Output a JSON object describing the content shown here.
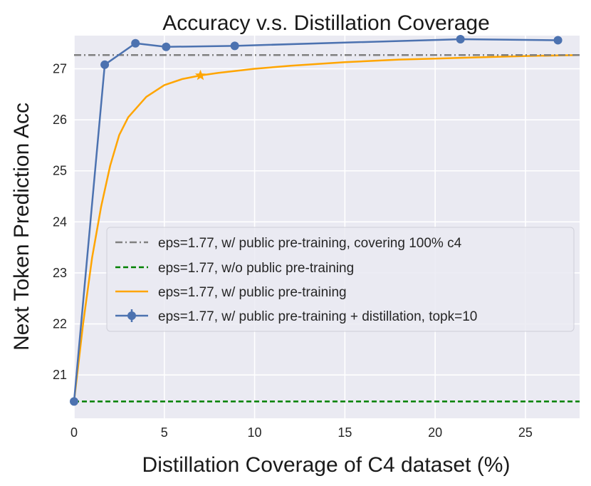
{
  "chart_data": {
    "type": "line",
    "title": "Accuracy v.s. Distillation Coverage",
    "xlabel": "Distillation Coverage of C4 dataset (%)",
    "ylabel": "Next Token Prediction Acc",
    "xlim": [
      0,
      28
    ],
    "ylim": [
      20.15,
      27.65
    ],
    "xticks": [
      0,
      5,
      10,
      15,
      20,
      25
    ],
    "yticks": [
      21,
      22,
      23,
      24,
      25,
      26,
      27
    ],
    "grid": true,
    "legend_position": "center-right",
    "series": [
      {
        "name": "eps=1.77, w/ public pre-training, covering 100% c4",
        "style": "dashdot",
        "color": "#808080",
        "x": [
          0,
          28
        ],
        "y": [
          27.27,
          27.27
        ]
      },
      {
        "name": "eps=1.77, w/o public pre-training",
        "style": "dashed",
        "color": "#008000",
        "x": [
          0,
          28
        ],
        "y": [
          20.48,
          20.48
        ]
      },
      {
        "name": "eps=1.77, w/ public pre-training",
        "style": "solid",
        "color": "#FFA500",
        "x": [
          0,
          0.5,
          1,
          1.5,
          2,
          2.5,
          3,
          4,
          5,
          6,
          7,
          8,
          10,
          12,
          15,
          18,
          20,
          22,
          25,
          28
        ],
        "y": [
          20.48,
          22.0,
          23.3,
          24.3,
          25.1,
          25.7,
          26.05,
          26.45,
          26.68,
          26.8,
          26.87,
          26.92,
          27.0,
          27.06,
          27.13,
          27.18,
          27.2,
          27.22,
          27.25,
          27.27
        ],
        "star_marker": {
          "x": 7.0,
          "y": 26.87
        }
      },
      {
        "name": "eps=1.77, w/ public pre-training + distillation, topk=10",
        "style": "solid-marker",
        "color": "#4C72B0",
        "x": [
          0,
          1.7,
          3.4,
          5.1,
          8.9,
          21.4,
          26.8
        ],
        "y": [
          20.48,
          27.08,
          27.5,
          27.43,
          27.45,
          27.58,
          27.56
        ]
      }
    ]
  }
}
